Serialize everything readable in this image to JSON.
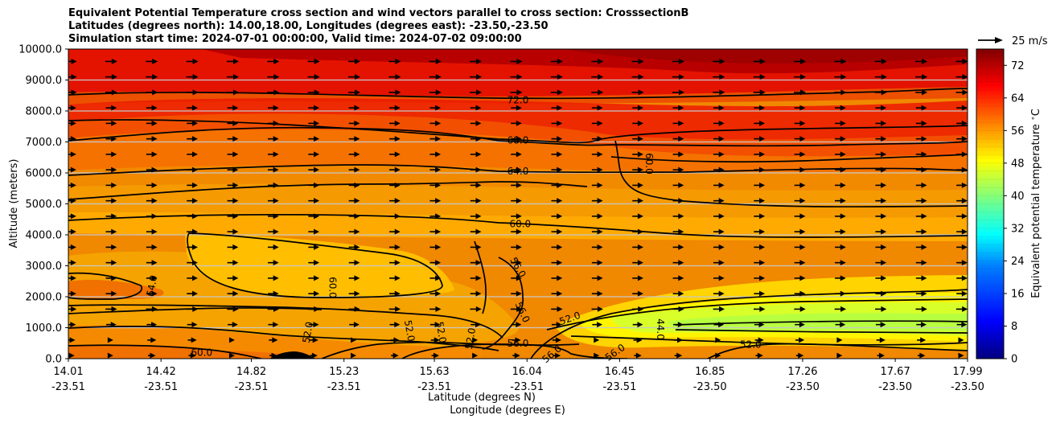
{
  "chart_data": {
    "type": "filled-contour",
    "title_lines": [
      "Equivalent Potential Temperature cross section and wind vectors parallel to cross section: CrosssectionB",
      "Latitudes (degrees north): 14.00,18.00, Longitudes (degrees east): -23.50,-23.50",
      "Simulation start time: 2024-07-01 00:00:00, Valid time: 2024-07-02 09:00:00"
    ],
    "ylabel": "Altitude (meters)",
    "xlabel_lines": [
      "Latitude (degrees N)",
      "Longitude (degrees E)"
    ],
    "ylim": [
      0,
      10000
    ],
    "y_ticks": [
      "0.0",
      "1000.0",
      "2000.0",
      "3000.0",
      "4000.0",
      "5000.0",
      "6000.0",
      "7000.0",
      "8000.0",
      "9000.0",
      "10000.0"
    ],
    "x_ticks": [
      {
        "lat": "14.01",
        "lon": "-23.51"
      },
      {
        "lat": "14.42",
        "lon": "-23.51"
      },
      {
        "lat": "14.82",
        "lon": "-23.51"
      },
      {
        "lat": "15.23",
        "lon": "-23.51"
      },
      {
        "lat": "15.63",
        "lon": "-23.51"
      },
      {
        "lat": "16.04",
        "lon": "-23.51"
      },
      {
        "lat": "16.45",
        "lon": "-23.51"
      },
      {
        "lat": "16.85",
        "lon": "-23.50"
      },
      {
        "lat": "17.26",
        "lon": "-23.50"
      },
      {
        "lat": "17.67",
        "lon": "-23.50"
      },
      {
        "lat": "17.99",
        "lon": "-23.50"
      }
    ],
    "colorbar": {
      "label": "Equivalent potential temperature $^\\circ$C",
      "range": [
        0,
        76
      ],
      "ticks": [
        "0",
        "8",
        "16",
        "24",
        "32",
        "40",
        "48",
        "56",
        "64",
        "72"
      ]
    },
    "quiver_key": "25 m/s",
    "contour_labels": [
      {
        "text": "72.0",
        "lat": 16.0,
        "alt": 8350
      },
      {
        "text": "68.0",
        "lat": 16.0,
        "alt": 7050
      },
      {
        "text": "64.0",
        "lat": 16.0,
        "alt": 6050
      },
      {
        "text": "60.0",
        "lat": 16.01,
        "alt": 4350
      },
      {
        "text": "60.0",
        "lat": 16.58,
        "alt": 6300
      },
      {
        "text": "56.0",
        "lat": 16.0,
        "alt": 2950
      },
      {
        "text": "56.0",
        "lat": 16.02,
        "alt": 1500
      },
      {
        "text": "56.0",
        "lat": 16.0,
        "alt": 500
      },
      {
        "text": "56.0",
        "lat": 16.15,
        "alt": 150
      },
      {
        "text": "56.0",
        "lat": 16.43,
        "alt": 200
      },
      {
        "text": "52.0",
        "lat": 16.23,
        "alt": 1300
      },
      {
        "text": "52.0",
        "lat": 15.52,
        "alt": 900
      },
      {
        "text": "52.0",
        "lat": 15.66,
        "alt": 850
      },
      {
        "text": "52.0",
        "lat": 15.79,
        "alt": 650
      },
      {
        "text": "52.0",
        "lat": 15.07,
        "alt": 850
      },
      {
        "text": "52.0",
        "lat": 17.03,
        "alt": 450
      },
      {
        "text": "44.0",
        "lat": 16.63,
        "alt": 950
      },
      {
        "text": "64.0",
        "lat": 14.38,
        "alt": 2350
      },
      {
        "text": "60.0",
        "lat": 15.18,
        "alt": 2300
      },
      {
        "text": "60.0",
        "lat": 14.6,
        "alt": 200
      }
    ]
  }
}
